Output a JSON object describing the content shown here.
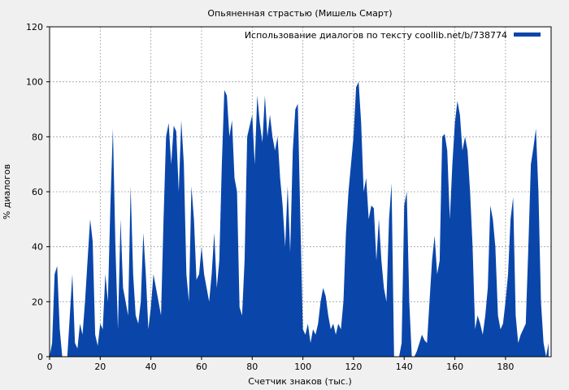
{
  "chart_data": {
    "type": "area",
    "title": "Опьяненная страстью (Мишель Смарт)",
    "xlabel": "Счетчик знаков (тыс.)",
    "ylabel": "% диалогов",
    "xlim": [
      0,
      198
    ],
    "ylim": [
      0,
      120
    ],
    "x_ticks": [
      0,
      20,
      40,
      60,
      80,
      100,
      120,
      140,
      160,
      180
    ],
    "y_ticks": [
      0,
      20,
      40,
      60,
      80,
      100,
      120
    ],
    "grid": true,
    "legend_position": "top-right",
    "colors": {
      "series": "#0a46aa",
      "background": "#f0f0f0",
      "plot_bg": "#ffffff",
      "grid": "#a0a0a0"
    },
    "series": [
      {
        "name": "Использование диалогов по тексту coollib.net/b/738774",
        "x": [
          0,
          1,
          2,
          3,
          4,
          5,
          6,
          7,
          8,
          9,
          10,
          11,
          12,
          13,
          14,
          15,
          16,
          17,
          18,
          19,
          20,
          21,
          22,
          23,
          24,
          25,
          26,
          27,
          28,
          29,
          30,
          31,
          32,
          33,
          34,
          35,
          36,
          37,
          38,
          39,
          40,
          41,
          42,
          43,
          44,
          45,
          46,
          47,
          48,
          49,
          50,
          51,
          52,
          53,
          54,
          55,
          56,
          57,
          58,
          59,
          60,
          61,
          62,
          63,
          64,
          65,
          66,
          67,
          68,
          69,
          70,
          71,
          72,
          73,
          74,
          75,
          76,
          77,
          78,
          79,
          80,
          81,
          82,
          83,
          84,
          85,
          86,
          87,
          88,
          89,
          90,
          91,
          92,
          93,
          94,
          95,
          96,
          97,
          98,
          99,
          100,
          101,
          102,
          103,
          104,
          105,
          106,
          107,
          108,
          109,
          110,
          111,
          112,
          113,
          114,
          115,
          116,
          117,
          118,
          119,
          120,
          121,
          122,
          123,
          124,
          125,
          126,
          127,
          128,
          129,
          130,
          131,
          132,
          133,
          134,
          135,
          136,
          137,
          138,
          139,
          140,
          141,
          142,
          143,
          144,
          145,
          146,
          147,
          148,
          149,
          150,
          151,
          152,
          153,
          154,
          155,
          156,
          157,
          158,
          159,
          160,
          161,
          162,
          163,
          164,
          165,
          166,
          167,
          168,
          169,
          170,
          171,
          172,
          173,
          174,
          175,
          176,
          177,
          178,
          179,
          180,
          181,
          182,
          183,
          184,
          185,
          186,
          187,
          188,
          189,
          190,
          191,
          192,
          193,
          194,
          195,
          196,
          197
        ],
        "values": [
          0,
          5,
          30,
          33,
          10,
          0,
          0,
          0,
          15,
          30,
          5,
          3,
          12,
          8,
          20,
          35,
          50,
          42,
          8,
          4,
          12,
          10,
          30,
          20,
          55,
          83,
          40,
          10,
          50,
          25,
          20,
          15,
          62,
          30,
          15,
          12,
          20,
          45,
          30,
          10,
          18,
          30,
          25,
          20,
          15,
          50,
          80,
          85,
          70,
          84,
          82,
          60,
          86,
          70,
          30,
          20,
          62,
          50,
          28,
          30,
          40,
          30,
          25,
          20,
          30,
          45,
          25,
          35,
          70,
          97,
          95,
          80,
          86,
          65,
          60,
          18,
          15,
          35,
          80,
          84,
          88,
          70,
          95,
          85,
          78,
          95,
          80,
          88,
          80,
          75,
          80,
          65,
          55,
          40,
          62,
          38,
          75,
          90,
          92,
          50,
          10,
          8,
          12,
          5,
          10,
          8,
          12,
          20,
          25,
          22,
          15,
          10,
          12,
          8,
          12,
          10,
          20,
          45,
          60,
          70,
          80,
          98,
          100,
          85,
          60,
          65,
          50,
          55,
          54,
          35,
          50,
          35,
          25,
          20,
          50,
          63,
          0,
          0,
          0,
          5,
          55,
          60,
          20,
          0,
          0,
          2,
          5,
          8,
          6,
          5,
          20,
          35,
          44,
          30,
          35,
          80,
          81,
          75,
          50,
          70,
          85,
          93,
          88,
          75,
          80,
          75,
          60,
          40,
          10,
          15,
          12,
          8,
          15,
          25,
          55,
          50,
          40,
          15,
          10,
          12,
          20,
          30,
          50,
          58,
          15,
          5,
          8,
          10,
          12,
          40,
          70,
          76,
          83,
          60,
          20,
          5,
          0,
          5
        ]
      }
    ]
  }
}
